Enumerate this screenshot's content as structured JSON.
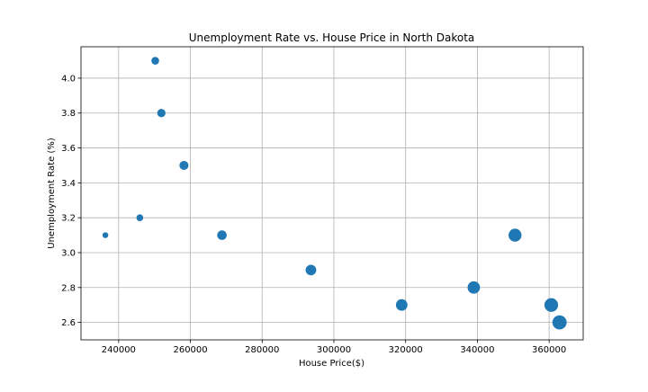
{
  "chart_data": {
    "type": "scatter",
    "title": "Unemployment Rate vs. House Price in North Dakota",
    "xlabel": "House Price($)",
    "ylabel": "Unemployment Rate (%)",
    "xlim": [
      229500,
      369500
    ],
    "ylim": [
      2.5,
      4.18
    ],
    "xticks": [
      240000,
      260000,
      280000,
      300000,
      320000,
      340000,
      360000
    ],
    "xtick_labels": [
      "240000",
      "260000",
      "280000",
      "300000",
      "320000",
      "340000",
      "360000"
    ],
    "yticks": [
      2.6,
      2.8,
      3.0,
      3.2,
      3.4,
      3.6,
      3.8,
      4.0
    ],
    "ytick_labels": [
      "2.6",
      "2.8",
      "3.0",
      "3.2",
      "3.4",
      "3.6",
      "3.8",
      "4.0"
    ],
    "grid": true,
    "marker_color": "#1f77b4",
    "points": [
      {
        "x": 236300,
        "y": 3.1,
        "size": 3.2
      },
      {
        "x": 245900,
        "y": 3.2,
        "size": 3.8
      },
      {
        "x": 250200,
        "y": 4.1,
        "size": 4.3
      },
      {
        "x": 251900,
        "y": 3.8,
        "size": 4.6
      },
      {
        "x": 258200,
        "y": 3.5,
        "size": 5.0
      },
      {
        "x": 268800,
        "y": 3.1,
        "size": 5.3
      },
      {
        "x": 293600,
        "y": 2.9,
        "size": 5.9
      },
      {
        "x": 318900,
        "y": 2.7,
        "size": 6.4
      },
      {
        "x": 339000,
        "y": 2.8,
        "size": 6.9
      },
      {
        "x": 350500,
        "y": 3.1,
        "size": 7.2
      },
      {
        "x": 360600,
        "y": 2.7,
        "size": 7.6
      },
      {
        "x": 362900,
        "y": 2.6,
        "size": 7.9
      }
    ]
  }
}
